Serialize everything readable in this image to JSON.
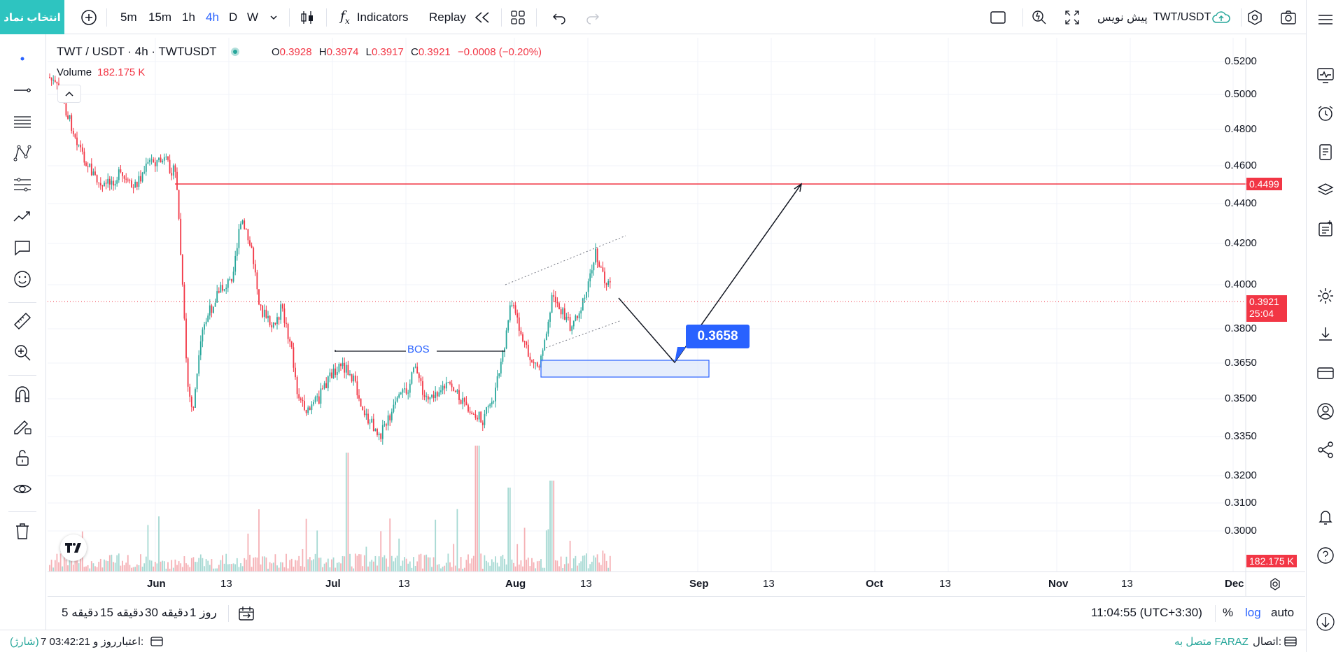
{
  "toolbar": {
    "symbol_button": "انتخاب نماد",
    "intervals": [
      "5m",
      "15m",
      "1h",
      "4h",
      "D",
      "W"
    ],
    "active_interval": "4h",
    "indicators_label": "Indicators",
    "replay_label": "Replay",
    "symbol_name": "TWT/USDT",
    "draft_label": "پیش نویس"
  },
  "legend": {
    "title": "TWT / USDT · 4h · TWTUSDT",
    "ohlc": {
      "o_label": "O",
      "o": "0.3928",
      "h_label": "H",
      "h": "0.3974",
      "l_label": "L",
      "l": "0.3917",
      "c_label": "C",
      "c": "0.3921",
      "change": "−0.0008 (−0.20%)"
    },
    "volume_label": "Volume",
    "volume_value": "182.175 K"
  },
  "chart_data": {
    "type": "candlestick",
    "price_axis": [
      "0.5200",
      "0.5000",
      "0.4800",
      "0.4600",
      "0.4400",
      "0.4200",
      "0.4000",
      "0.3800",
      "0.3650",
      "0.3500",
      "0.3350",
      "0.3200",
      "0.3100",
      "0.3000"
    ],
    "log_scale": true,
    "time_axis": [
      "Jun",
      "13",
      "Jul",
      "13",
      "Aug",
      "13",
      "Sep",
      "13",
      "Oct",
      "13",
      "Nov",
      "13",
      "Dec"
    ],
    "resistance_line": "0.4499",
    "current_price": "0.3921",
    "countdown": "25:04",
    "volume_tag": "182.175 K",
    "annotations": {
      "bos_label": "BOS",
      "target_label": "0.3658"
    }
  },
  "bottom": {
    "ranges": [
      "5 دقیقه",
      "15 دقیقه",
      "30 دقیقه",
      "1 روز"
    ],
    "clock": "11:04:55 (UTC+3:30)",
    "percent_label": "%",
    "log_label": "log",
    "auto_label": "auto"
  },
  "status": {
    "credit_label": "اعتبار:",
    "credit_value": "7 روز و 03:42:21",
    "charge_label": "(شارژ)",
    "connection_label": "اتصال:",
    "connection_value": "متصل به FARAZ"
  },
  "colors": {
    "accent": "#2962ff",
    "up": "#26a69a",
    "down": "#f23645",
    "symbol_button": "#2ec4c0"
  }
}
